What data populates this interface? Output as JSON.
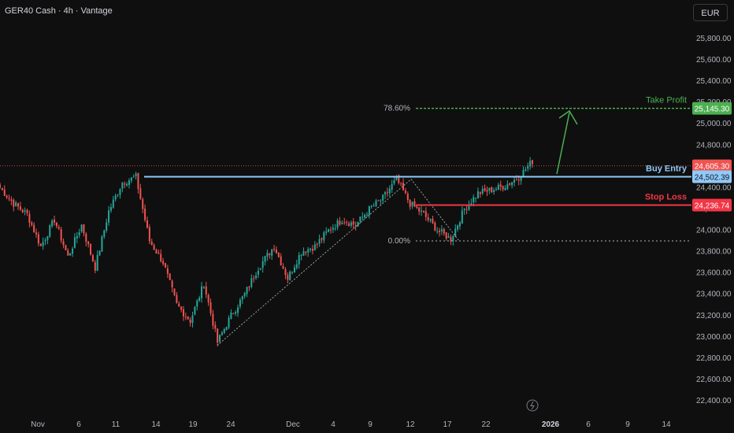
{
  "header": {
    "symbol": "GER40 Cash · 4h · Vantage",
    "currency": "EUR"
  },
  "colors": {
    "background": "#0f0f0f",
    "up": "#26a69a",
    "down": "#ef5350",
    "take_profit": "#4caf50",
    "entry": "#90caf9",
    "stop": "#f23645",
    "axis_text": "#b2b5be"
  },
  "chart_data": {
    "type": "candlestick",
    "timeframe": "4h",
    "ylim": [
      22300,
      26000
    ],
    "y_ticks": [
      "25,800.00",
      "25,600.00",
      "25,400.00",
      "25,200.00",
      "25,000.00",
      "24,800.00",
      "24,600.00",
      "24,400.00",
      "24,200.00",
      "24,000.00",
      "23,800.00",
      "23,600.00",
      "23,400.00",
      "23,200.00",
      "23,000.00",
      "22,800.00",
      "22,600.00",
      "22,400.00"
    ],
    "x_ticks": [
      "Nov",
      "6",
      "11",
      "14",
      "19",
      "24",
      "Dec",
      "4",
      "9",
      "12",
      "17",
      "22",
      "2026",
      "6",
      "9",
      "14"
    ],
    "price_path": [
      {
        "time": "Oct 30",
        "price": 24400
      },
      {
        "time": "Oct 31",
        "price": 24250
      },
      {
        "time": "Nov 3",
        "price": 24150
      },
      {
        "time": "Nov 4",
        "price": 23850
      },
      {
        "time": "Nov 5",
        "price": 24100
      },
      {
        "time": "Nov 6",
        "price": 23750
      },
      {
        "time": "Nov 7",
        "price": 24050
      },
      {
        "time": "Nov 10",
        "price": 23650
      },
      {
        "time": "Nov 11",
        "price": 24180
      },
      {
        "time": "Nov 12",
        "price": 24450
      },
      {
        "time": "Nov 13",
        "price": 24500
      },
      {
        "time": "Nov 14",
        "price": 23900
      },
      {
        "time": "Nov 17",
        "price": 23700
      },
      {
        "time": "Nov 18",
        "price": 23300
      },
      {
        "time": "Nov 19",
        "price": 23150
      },
      {
        "time": "Nov 20",
        "price": 23500
      },
      {
        "time": "Nov 21",
        "price": 22950
      },
      {
        "time": "Nov 24",
        "price": 23200
      },
      {
        "time": "Nov 25",
        "price": 23400
      },
      {
        "time": "Nov 26",
        "price": 23650
      },
      {
        "time": "Nov 28",
        "price": 23850
      },
      {
        "time": "Dec 1",
        "price": 23550
      },
      {
        "time": "Dec 2",
        "price": 23800
      },
      {
        "time": "Dec 4",
        "price": 23850
      },
      {
        "time": "Dec 5",
        "price": 24000
      },
      {
        "time": "Dec 8",
        "price": 24100
      },
      {
        "time": "Dec 9",
        "price": 24050
      },
      {
        "time": "Dec 10",
        "price": 24200
      },
      {
        "time": "Dec 11",
        "price": 24300
      },
      {
        "time": "Dec 12",
        "price": 24480
      },
      {
        "time": "Dec 15",
        "price": 24250
      },
      {
        "time": "Dec 16",
        "price": 24150
      },
      {
        "time": "Dec 17",
        "price": 24000
      },
      {
        "time": "Dec 18",
        "price": 23920
      },
      {
        "time": "Dec 19",
        "price": 24200
      },
      {
        "time": "Dec 22",
        "price": 24350
      },
      {
        "time": "Dec 23",
        "price": 24380
      },
      {
        "time": "Dec 29",
        "price": 24420
      },
      {
        "time": "Dec 30",
        "price": 24500
      },
      {
        "time": "Dec 31",
        "price": 24650
      }
    ],
    "levels": {
      "take_profit": {
        "label": "Take Profit",
        "price": 25145.3,
        "tag": "25,145.30"
      },
      "current": {
        "price": 24605.3,
        "tag": "24,605.30"
      },
      "entry": {
        "label": "Buy Entry",
        "price": 24502.39,
        "tag": "24,502.39"
      },
      "stop": {
        "label": "Stop Loss",
        "price": 24236.74,
        "tag": "24,236.74"
      }
    },
    "fib": {
      "level_786": {
        "label": "78.60%",
        "price": 25145.3
      },
      "level_0": {
        "label": "0.00%",
        "price": 23900
      }
    },
    "annotations": [
      "Take Profit",
      "Buy Entry",
      "Stop Loss",
      "78.60%",
      "0.00%"
    ]
  }
}
